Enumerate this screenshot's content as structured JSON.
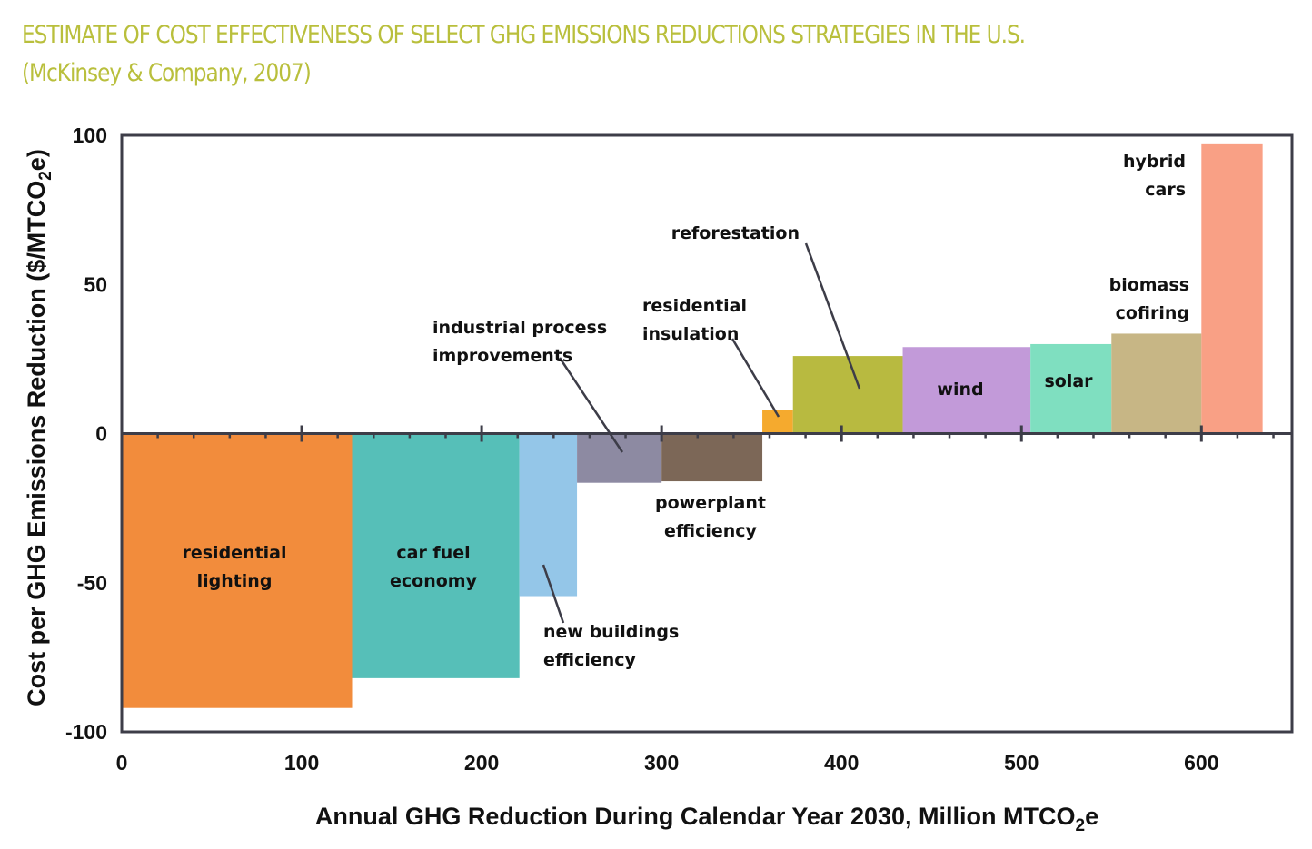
{
  "title": {
    "line1": "ESTIMATE OF COST EFFECTIVENESS OF SELECT GHG EMISSIONS REDUCTIONS STRATEGIES IN THE U.S.",
    "line2": "(McKinsey & Company, 2007)",
    "color": "#b9bf3c"
  },
  "chart_data": {
    "type": "bar",
    "subtype": "variable-width step (marginal abatement cost curve)",
    "title": "ESTIMATE OF COST EFFECTIVENESS OF SELECT GHG EMISSIONS REDUCTIONS STRATEGIES IN THE U.S. (McKinsey & Company, 2007)",
    "xlabel": "Annual GHG Reduction During Calendar Year 2030, Million MTCO2e",
    "xlabel_parts": {
      "main": "Annual GHG Reduction During Calendar Year 2030, Million MTCO",
      "sub": "2",
      "tail": "e"
    },
    "ylabel": "Cost per GHG Emissions Reduction ($/MTCO2e)",
    "ylabel_parts": {
      "main": "Cost per GHG Emissions Reduction ($/MTCO",
      "sub": "2",
      "tail": "e)"
    },
    "xlim": [
      0,
      650
    ],
    "ylim": [
      -100,
      100
    ],
    "xticks": [
      0,
      100,
      200,
      300,
      400,
      500,
      600
    ],
    "yticks": [
      100,
      50,
      0,
      -50,
      -100
    ],
    "x_minor_step": 20,
    "grid": false,
    "legend": "none (labels annotated directly)",
    "series": [
      {
        "name": "residential lighting",
        "x_start": 0,
        "x_end": 128,
        "value": -92,
        "color": "#f28c3c",
        "label_lines": [
          "residential",
          "lighting"
        ]
      },
      {
        "name": "car fuel economy",
        "x_start": 128,
        "x_end": 221,
        "value": -82,
        "color": "#56bfb8",
        "label_lines": [
          "car fuel",
          "economy"
        ]
      },
      {
        "name": "new buildings efficiency",
        "x_start": 221,
        "x_end": 253,
        "value": -54.5,
        "color": "#94c6e8",
        "label_lines": [
          "new buildings",
          "efficiency"
        ]
      },
      {
        "name": "industrial process improvements",
        "x_start": 253,
        "x_end": 300,
        "value": -16.5,
        "color": "#8d8aa2",
        "label_lines": [
          "industrial process",
          "improvements"
        ]
      },
      {
        "name": "powerplant efficiency",
        "x_start": 300,
        "x_end": 356,
        "value": -16,
        "color": "#7c6757",
        "label_lines": [
          "powerplant",
          "efficiency"
        ]
      },
      {
        "name": "residential insulation",
        "x_start": 356,
        "x_end": 373,
        "value": 8,
        "color": "#f5aa2e",
        "label_lines": [
          "residential",
          "insulation"
        ]
      },
      {
        "name": "reforestation",
        "x_start": 373,
        "x_end": 434,
        "value": 26,
        "color": "#b8ba40",
        "label_lines": [
          "reforestation"
        ]
      },
      {
        "name": "wind",
        "x_start": 434,
        "x_end": 505,
        "value": 29,
        "color": "#c29ad9",
        "label_lines": [
          "wind"
        ]
      },
      {
        "name": "solar",
        "x_start": 505,
        "x_end": 550,
        "value": 30,
        "color": "#7fdfc0",
        "label_lines": [
          "solar"
        ]
      },
      {
        "name": "biomass cofiring",
        "x_start": 550,
        "x_end": 600,
        "value": 33.5,
        "color": "#c7b685",
        "label_lines": [
          "biomass",
          "cofiring"
        ]
      },
      {
        "name": "hybrid cars",
        "x_start": 600,
        "x_end": 634,
        "value": 97,
        "color": "#f9a085",
        "label_lines": [
          "hybrid",
          "cars"
        ]
      }
    ]
  }
}
